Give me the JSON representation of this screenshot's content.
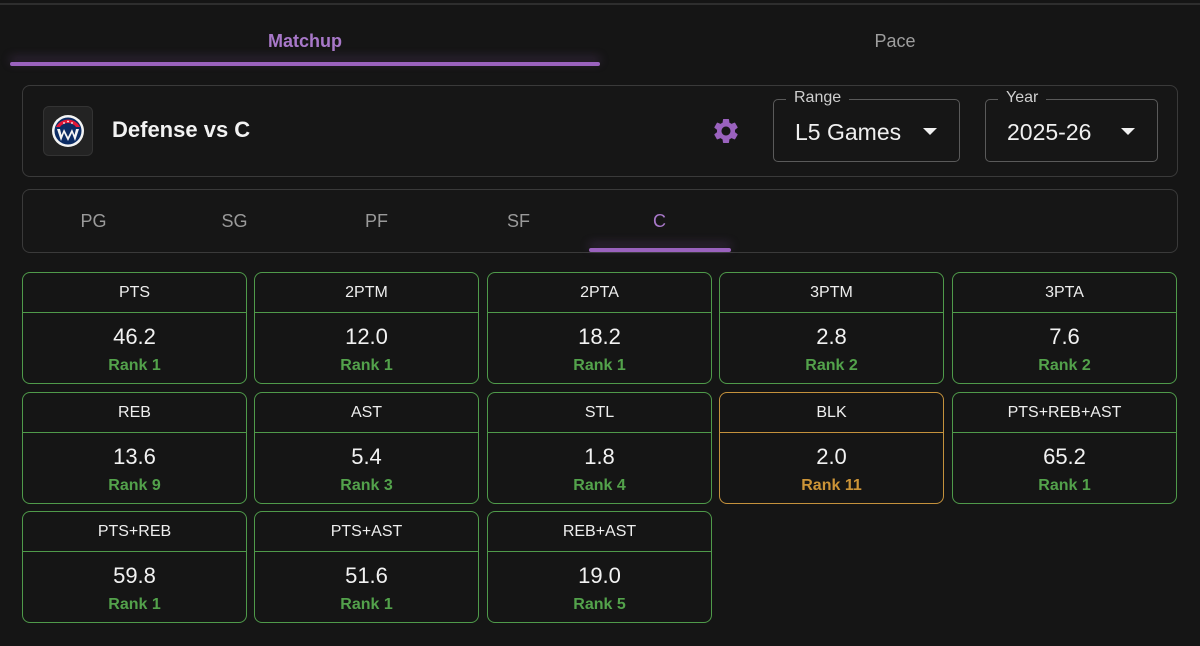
{
  "tabs": {
    "main": [
      {
        "label": "Matchup",
        "active": true
      },
      {
        "label": "Pace",
        "active": false
      }
    ]
  },
  "header": {
    "title": "Defense vs C",
    "logo_icon": "wizards-team-logo",
    "settings_icon": "gear-icon",
    "range": {
      "legend": "Range",
      "value": "L5 Games"
    },
    "year": {
      "legend": "Year",
      "value": "2025-26"
    }
  },
  "positions": [
    "PG",
    "SG",
    "PF",
    "SF",
    "C"
  ],
  "active_position": "C",
  "colors": {
    "accent": "#9a62be",
    "good": "#53a24b",
    "warn": "#cc9437"
  },
  "stats": [
    {
      "label": "PTS",
      "value": "46.2",
      "rank": "Rank 1",
      "status": "good"
    },
    {
      "label": "2PTM",
      "value": "12.0",
      "rank": "Rank 1",
      "status": "good"
    },
    {
      "label": "2PTA",
      "value": "18.2",
      "rank": "Rank 1",
      "status": "good"
    },
    {
      "label": "3PTM",
      "value": "2.8",
      "rank": "Rank 2",
      "status": "good"
    },
    {
      "label": "3PTA",
      "value": "7.6",
      "rank": "Rank 2",
      "status": "good"
    },
    {
      "label": "REB",
      "value": "13.6",
      "rank": "Rank 9",
      "status": "good"
    },
    {
      "label": "AST",
      "value": "5.4",
      "rank": "Rank 3",
      "status": "good"
    },
    {
      "label": "STL",
      "value": "1.8",
      "rank": "Rank 4",
      "status": "good"
    },
    {
      "label": "BLK",
      "value": "2.0",
      "rank": "Rank 11",
      "status": "warn"
    },
    {
      "label": "PTS+REB+AST",
      "value": "65.2",
      "rank": "Rank 1",
      "status": "good"
    },
    {
      "label": "PTS+REB",
      "value": "59.8",
      "rank": "Rank 1",
      "status": "good"
    },
    {
      "label": "PTS+AST",
      "value": "51.6",
      "rank": "Rank 1",
      "status": "good"
    },
    {
      "label": "REB+AST",
      "value": "19.0",
      "rank": "Rank 5",
      "status": "good"
    }
  ]
}
